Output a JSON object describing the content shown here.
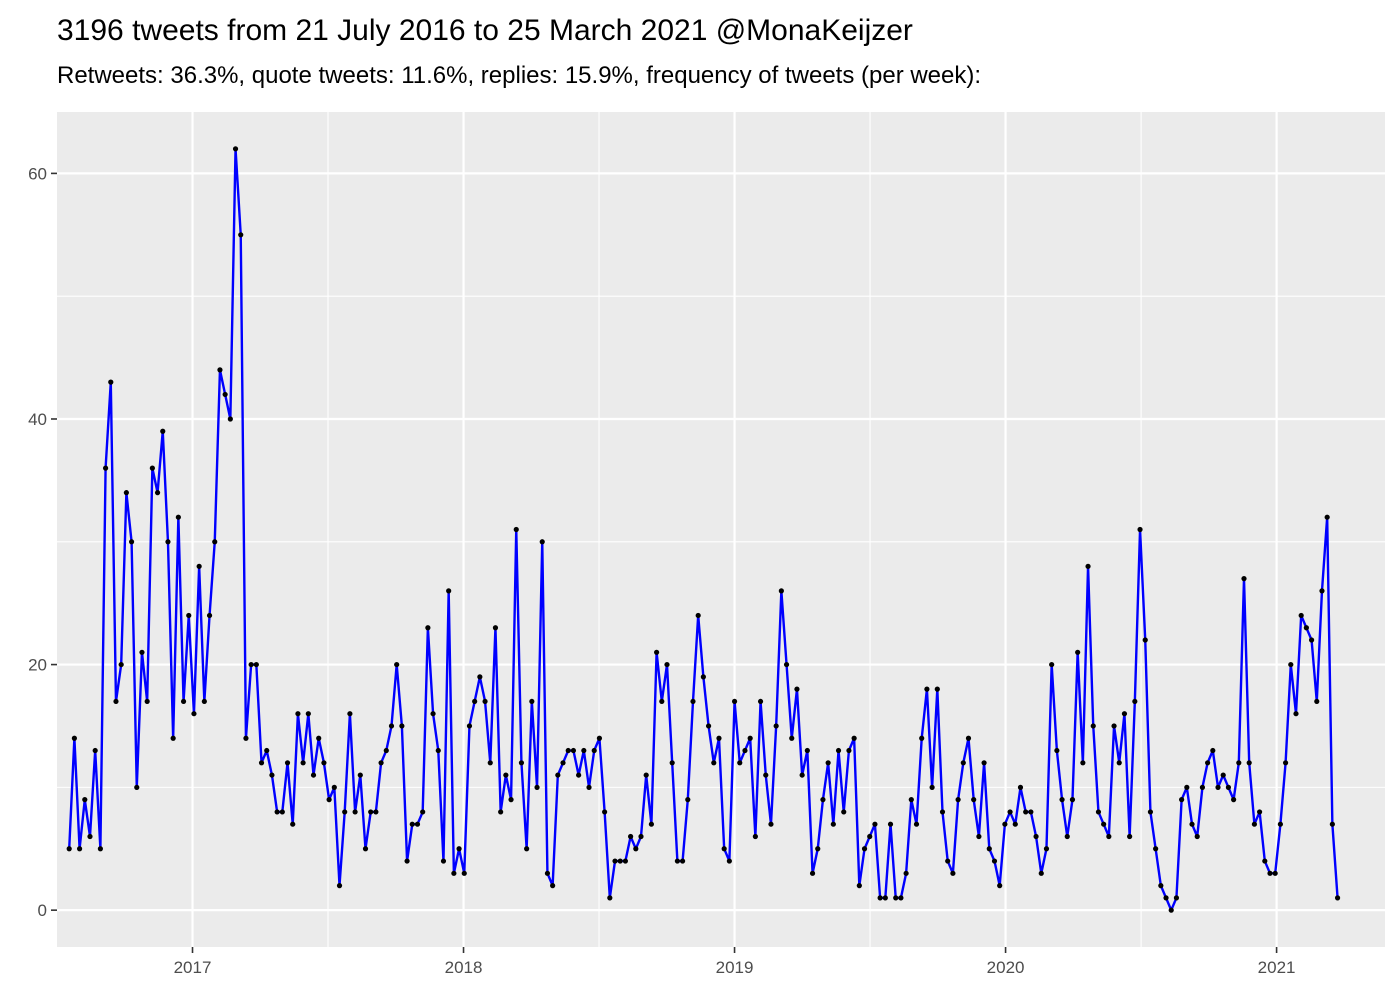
{
  "chart_data": {
    "type": "line",
    "title": "3196 tweets from 21 July 2016 to 25 March 2021 @MonaKeijzer",
    "subtitle": "Retweets: 36.3%, quote tweets: 11.6%, replies: 15.9%, frequency of tweets (per week):",
    "xlabel": "",
    "ylabel": "",
    "x_start_year": 2016.545,
    "x_end_year": 2021.225,
    "xlim": [
      2016.5,
      2021.4
    ],
    "ylim": [
      -3,
      65
    ],
    "x_ticks": [
      "2017",
      "2018",
      "2019",
      "2020",
      "2021"
    ],
    "y_ticks": [
      "0",
      "20",
      "40",
      "60"
    ],
    "grid": true,
    "legend": "none",
    "line_color": "#0000ff",
    "point_color": "#000000",
    "panel_color": "#ebebeb",
    "values": [
      5,
      14,
      5,
      9,
      6,
      13,
      5,
      36,
      43,
      17,
      20,
      34,
      30,
      10,
      21,
      17,
      36,
      34,
      39,
      30,
      14,
      32,
      17,
      24,
      16,
      28,
      17,
      24,
      30,
      44,
      42,
      40,
      62,
      55,
      14,
      20,
      20,
      12,
      13,
      11,
      8,
      8,
      12,
      7,
      16,
      12,
      16,
      11,
      14,
      12,
      9,
      10,
      2,
      8,
      16,
      8,
      11,
      5,
      8,
      8,
      12,
      13,
      15,
      20,
      15,
      4,
      7,
      7,
      8,
      23,
      16,
      13,
      4,
      26,
      3,
      5,
      3,
      15,
      17,
      19,
      17,
      12,
      23,
      8,
      11,
      9,
      31,
      12,
      5,
      17,
      10,
      30,
      3,
      2,
      11,
      12,
      13,
      13,
      11,
      13,
      10,
      13,
      14,
      8,
      1,
      4,
      4,
      4,
      6,
      5,
      6,
      11,
      7,
      21,
      17,
      20,
      12,
      4,
      4,
      9,
      17,
      24,
      19,
      15,
      12,
      14,
      5,
      4,
      17,
      12,
      13,
      14,
      6,
      17,
      11,
      7,
      15,
      26,
      20,
      14,
      18,
      11,
      13,
      3,
      5,
      9,
      12,
      7,
      13,
      8,
      13,
      14,
      2,
      5,
      6,
      7,
      1,
      1,
      7,
      1,
      1,
      3,
      9,
      7,
      14,
      18,
      10,
      18,
      8,
      4,
      3,
      9,
      12,
      14,
      9,
      6,
      12,
      5,
      4,
      2,
      7,
      8,
      7,
      10,
      8,
      8,
      6,
      3,
      5,
      20,
      13,
      9,
      6,
      9,
      21,
      12,
      28,
      15,
      8,
      7,
      6,
      15,
      12,
      16,
      6,
      17,
      31,
      22,
      8,
      5,
      2,
      1,
      0,
      1,
      9,
      10,
      7,
      6,
      10,
      12,
      13,
      10,
      11,
      10,
      9,
      12,
      27,
      12,
      7,
      8,
      4,
      3,
      3,
      7,
      12,
      20,
      16,
      24,
      23,
      22,
      17,
      26,
      32,
      7,
      1
    ]
  }
}
